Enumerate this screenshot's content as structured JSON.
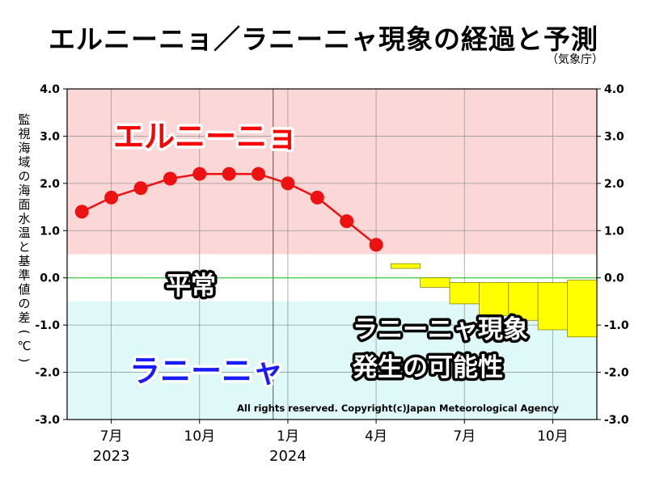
{
  "title": "エルニーニョ／ラニーニャ現象の経過と予測",
  "source": "（気象庁）",
  "copyright": "All rights reserved. Copyright(c)Japan Meteorological Agency",
  "chart_data": {
    "type": "line",
    "ylabel": "監視海域の海面水温と基準値の差（℃）",
    "ylim": [
      -3.0,
      4.0
    ],
    "yticks": [
      "4.0",
      "3.0",
      "2.0",
      "1.0",
      "0.0",
      "-1.0",
      "-2.0",
      "-3.0"
    ],
    "x_ticks": [
      {
        "month": "7月",
        "year": "2023",
        "index": 1
      },
      {
        "month": "10月",
        "year": "",
        "index": 4
      },
      {
        "month": "1月",
        "year": "2024",
        "index": 7
      },
      {
        "month": "4月",
        "year": "",
        "index": 10
      },
      {
        "month": "7月",
        "year": "",
        "index": 13
      },
      {
        "month": "10月",
        "year": "",
        "index": 16
      }
    ],
    "year_divider_index": 6.5,
    "observed": {
      "months": [
        0,
        1,
        2,
        3,
        4,
        5,
        6,
        7,
        8,
        9,
        10
      ],
      "values": [
        1.4,
        1.7,
        1.9,
        2.1,
        2.2,
        2.2,
        2.2,
        2.0,
        1.7,
        1.2,
        0.7
      ]
    },
    "forecast": [
      {
        "month": 11,
        "low": 0.2,
        "high": 0.3
      },
      {
        "month": 12,
        "low": -0.2,
        "high": 0.0
      },
      {
        "month": 13,
        "low": -0.55,
        "high": -0.1
      },
      {
        "month": 14,
        "low": -0.8,
        "high": -0.1
      },
      {
        "month": 15,
        "low": -0.9,
        "high": -0.1
      },
      {
        "month": 16,
        "low": -1.1,
        "high": -0.1
      },
      {
        "month": 17,
        "low": -1.25,
        "high": -0.05
      }
    ],
    "zones": [
      {
        "label": "エルニーニョ",
        "from": 0.5,
        "to": 4.0,
        "fill": "#fbd7d7",
        "text_color": "#ff0000"
      },
      {
        "label": "平常",
        "from": -0.5,
        "to": 0.5,
        "fill": "#ffffff",
        "text_color": "#000000"
      },
      {
        "label": "ラニーニャ",
        "from": -3.0,
        "to": -0.5,
        "fill": "#dff8f8",
        "text_color": "#1a1aff"
      }
    ],
    "annotation": [
      "ラニーニャ現象",
      "発生の可能性"
    ],
    "colors": {
      "observed": "#ee1111",
      "forecast": "#ffff00",
      "zero_line": "#33cc33"
    }
  }
}
